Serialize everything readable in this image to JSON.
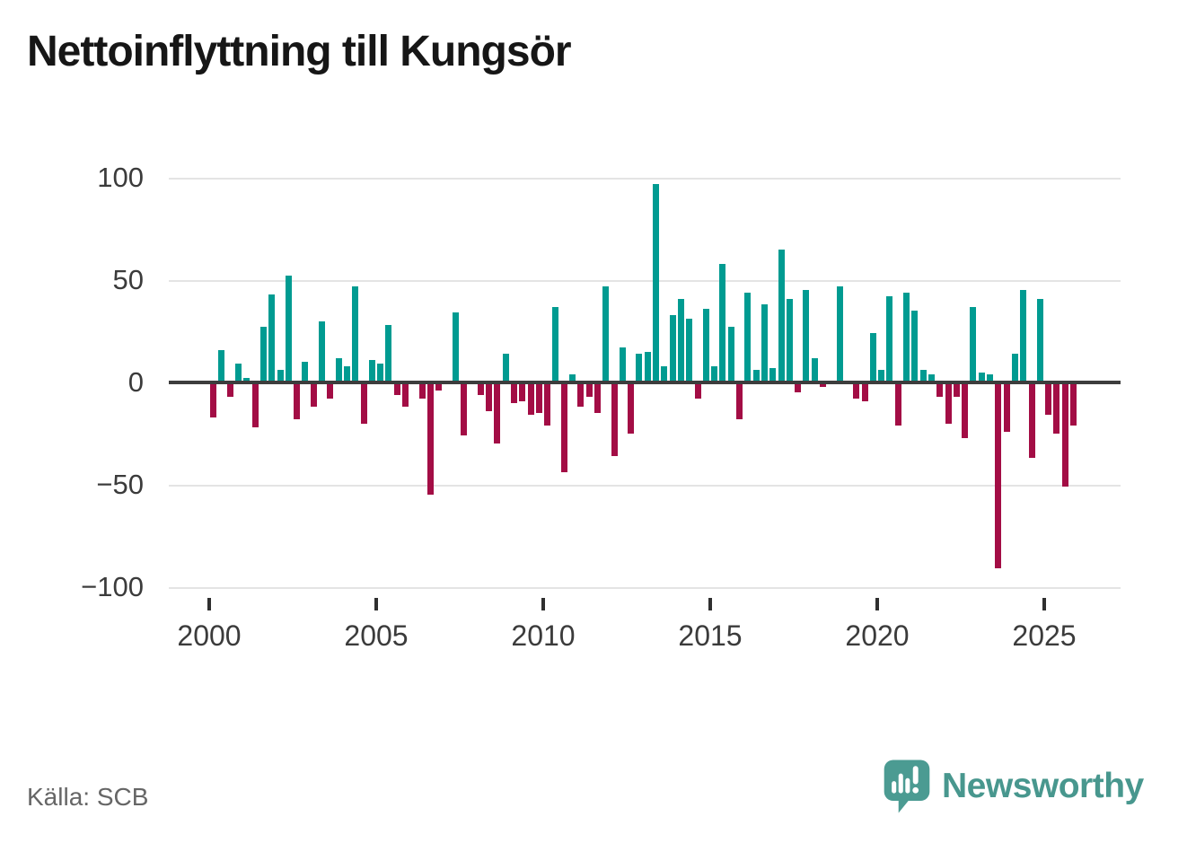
{
  "title": "Nettoinflyttning till Kungsör",
  "source": "Källa: SCB",
  "branding": {
    "name": "Newsworthy",
    "icon": "speech-bubble-bar-chart"
  },
  "colors": {
    "positive": "#009b91",
    "negative": "#a30d45",
    "grid": "#e4e4e4",
    "zero_line": "#3d3d3d",
    "axis_text": "#3b3b3b",
    "title_text": "#161616",
    "source_text": "#666666",
    "brand": "#48978e"
  },
  "chart_data": {
    "type": "bar",
    "title": "Nettoinflyttning till Kungsör",
    "xlabel": "",
    "ylabel": "",
    "x_unit": "quarter",
    "ylim": [
      -100,
      100
    ],
    "grid": true,
    "legend": false,
    "yticks": [
      100,
      50,
      0,
      -50,
      -100
    ],
    "ytick_labels": [
      "100",
      "50",
      "0",
      "−50",
      "−100"
    ],
    "xticks": [
      2000,
      2005,
      2010,
      2015,
      2020,
      2025
    ],
    "xtick_labels": [
      "2000",
      "2005",
      "2010",
      "2015",
      "2020",
      "2025"
    ],
    "x": [
      "2000Q1",
      "2000Q2",
      "2000Q3",
      "2000Q4",
      "2001Q1",
      "2001Q2",
      "2001Q3",
      "2001Q4",
      "2002Q1",
      "2002Q2",
      "2002Q3",
      "2002Q4",
      "2003Q1",
      "2003Q2",
      "2003Q3",
      "2003Q4",
      "2004Q1",
      "2004Q2",
      "2004Q3",
      "2004Q4",
      "2005Q1",
      "2005Q2",
      "2005Q3",
      "2005Q4",
      "2006Q1",
      "2006Q2",
      "2006Q3",
      "2006Q4",
      "2007Q1",
      "2007Q2",
      "2007Q3",
      "2007Q4",
      "2008Q1",
      "2008Q2",
      "2008Q3",
      "2008Q4",
      "2009Q1",
      "2009Q2",
      "2009Q3",
      "2009Q4",
      "2010Q1",
      "2010Q2",
      "2010Q3",
      "2010Q4",
      "2011Q1",
      "2011Q2",
      "2011Q3",
      "2011Q4",
      "2012Q1",
      "2012Q2",
      "2012Q3",
      "2012Q4",
      "2013Q1",
      "2013Q2",
      "2013Q3",
      "2013Q4",
      "2014Q1",
      "2014Q2",
      "2014Q3",
      "2014Q4",
      "2015Q1",
      "2015Q2",
      "2015Q3",
      "2015Q4",
      "2016Q1",
      "2016Q2",
      "2016Q3",
      "2016Q4",
      "2017Q1",
      "2017Q2",
      "2017Q3",
      "2017Q4",
      "2018Q1",
      "2018Q2",
      "2018Q3",
      "2018Q4",
      "2019Q1",
      "2019Q2",
      "2019Q3",
      "2019Q4",
      "2020Q1",
      "2020Q2",
      "2020Q3",
      "2020Q4",
      "2021Q1",
      "2021Q2",
      "2021Q3",
      "2021Q4",
      "2022Q1",
      "2022Q2",
      "2022Q3",
      "2022Q4",
      "2023Q1",
      "2023Q2",
      "2023Q3",
      "2023Q4",
      "2024Q1",
      "2024Q2",
      "2024Q3",
      "2024Q4",
      "2025Q1",
      "2025Q2",
      "2025Q3",
      "2025Q4"
    ],
    "values": [
      -17,
      16,
      -7,
      9,
      2,
      -22,
      27,
      43,
      6,
      52,
      -18,
      10,
      -12,
      30,
      -8,
      12,
      8,
      47,
      -20,
      11,
      9,
      28,
      -6,
      -12,
      0,
      -8,
      -55,
      -4,
      0,
      34,
      -26,
      0,
      -6,
      -14,
      -30,
      14,
      -10,
      -9,
      -16,
      -15,
      -21,
      37,
      -44,
      4,
      -12,
      -7,
      -15,
      47,
      -36,
      17,
      -25,
      14,
      15,
      97,
      8,
      33,
      41,
      31,
      -8,
      36,
      8,
      58,
      27,
      -18,
      44,
      6,
      38,
      7,
      65,
      41,
      -5,
      45,
      12,
      -2,
      0,
      47,
      0,
      -8,
      -9,
      24,
      6,
      42,
      -21,
      44,
      35,
      6,
      4,
      -7,
      -20,
      -7,
      -27,
      37,
      5,
      4,
      -91,
      -24,
      14,
      45,
      -37,
      41,
      -16,
      -25,
      -51,
      -21
    ]
  }
}
